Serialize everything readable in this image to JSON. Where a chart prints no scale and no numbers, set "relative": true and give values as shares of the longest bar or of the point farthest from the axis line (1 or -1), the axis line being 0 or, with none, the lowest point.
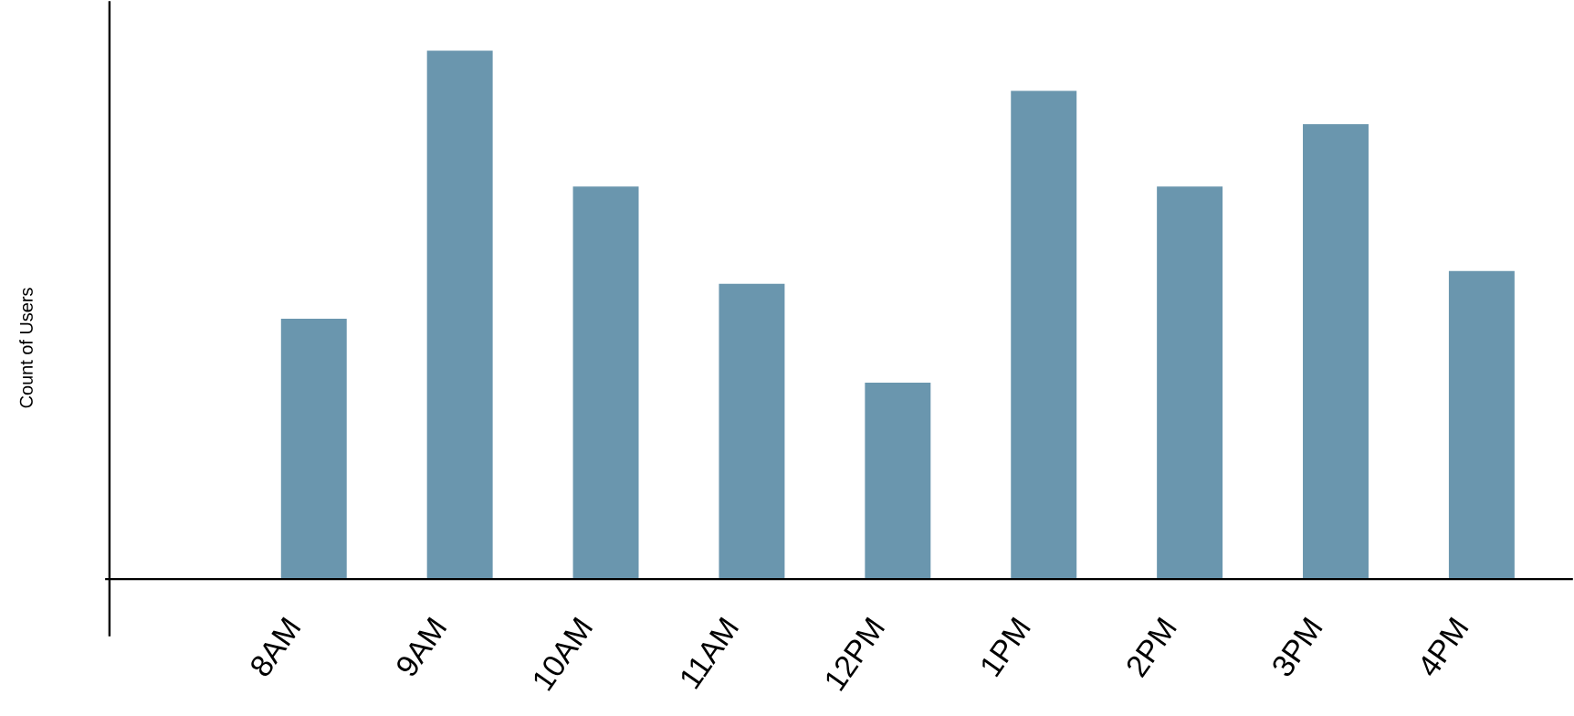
{
  "chart_data": {
    "type": "bar",
    "ylabel": "Count of Users",
    "relative": true,
    "color": "#6a96ae",
    "categories": [
      "8AM",
      "9AM",
      "10AM",
      "11AM",
      "12PM",
      "1PM",
      "2PM",
      "3PM",
      "4PM"
    ],
    "values": [
      0.493,
      1,
      0.743,
      0.559,
      0.372,
      0.924,
      0.743,
      0.861,
      0.583
    ]
  }
}
